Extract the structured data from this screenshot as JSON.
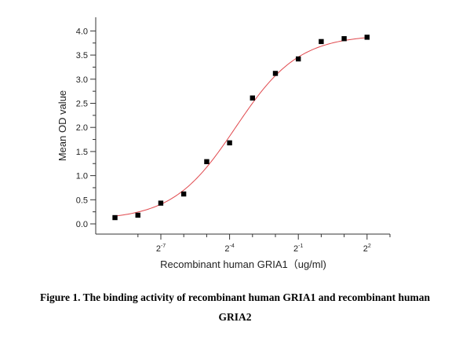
{
  "chart_data": {
    "type": "scatter",
    "title": "",
    "xlabel": "Recombinant human GRIA1（ug/ml)",
    "ylabel": "Mean OD value",
    "x_scale": "log2",
    "x_tick_labels": [
      {
        "base": "2",
        "exp": "-7",
        "value": 0.0078125
      },
      {
        "base": "2",
        "exp": "-4",
        "value": 0.0625
      },
      {
        "base": "2",
        "exp": "-1",
        "value": 0.5
      },
      {
        "base": "2",
        "exp": "2",
        "value": 4
      }
    ],
    "ylim": [
      -0.2,
      4.15
    ],
    "yticks": [
      "0.0",
      "0.5",
      "1.0",
      "1.5",
      "2.0",
      "2.5",
      "3.0",
      "3.5",
      "4.0"
    ],
    "series": [
      {
        "marker": "square",
        "color": "#000000",
        "x": [
          0.00195,
          0.0039,
          0.0078,
          0.0156,
          0.0313,
          0.0625,
          0.125,
          0.25,
          0.5,
          1,
          2,
          4
        ],
        "y": [
          0.13,
          0.18,
          0.43,
          0.62,
          1.29,
          1.68,
          2.61,
          3.12,
          3.42,
          3.78,
          3.84,
          3.87
        ]
      }
    ],
    "fit": {
      "type": "4PL",
      "color": "#e0474c",
      "bottom": 0.08,
      "top": 3.92,
      "ec50": 0.075,
      "hill": 1.05
    },
    "grid": false,
    "legend": "none"
  },
  "caption": {
    "line1": "Figure 1. The binding activity of recombinant human GRIA1 and recombinant human",
    "line2": "GRIA2"
  }
}
